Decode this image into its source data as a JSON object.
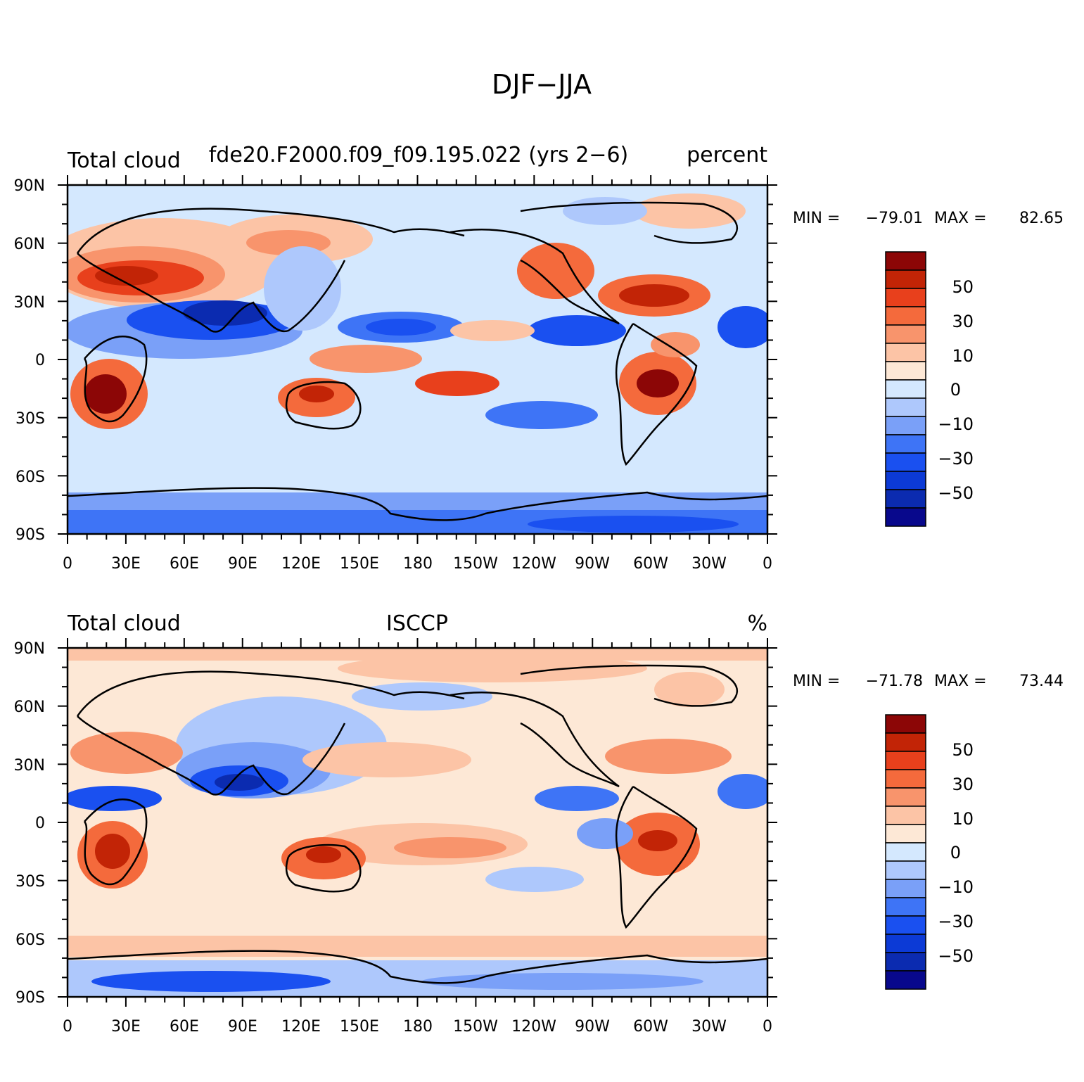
{
  "main_title": "DJF−JJA",
  "colorbar_colors": [
    "#08088c",
    "#0b2bb0",
    "#0c3ad6",
    "#1a50f0",
    "#3e74f6",
    "#7aa0f8",
    "#aec8fc",
    "#d4e8fe",
    "#fde8d6",
    "#fcc4a6",
    "#f8946c",
    "#f46a3c",
    "#e8401c",
    "#c22406",
    "#8c0606"
  ],
  "panels": [
    {
      "left_title": "Total cloud",
      "center_title": "fde20.F2000.f09_f09.195.022 (yrs 2−6)",
      "right_title": "percent",
      "min_label": "MIN =",
      "min_value": "−79.01",
      "max_label": "MAX =",
      "max_value": "82.65",
      "colorbar_labels": [
        "50",
        "30",
        "10",
        "0",
        "−10",
        "−30",
        "−50"
      ],
      "lat_labels": [
        "90N",
        "60N",
        "30N",
        "0",
        "30S",
        "60S",
        "90S"
      ],
      "lon_labels": [
        "0",
        "30E",
        "60E",
        "90E",
        "120E",
        "150E",
        "180",
        "150W",
        "120W",
        "90W",
        "60W",
        "30W",
        "0"
      ]
    },
    {
      "left_title": "Total cloud",
      "center_title": "ISCCP",
      "right_title": "%",
      "min_label": "MIN =",
      "min_value": "−71.78",
      "max_label": "MAX =",
      "max_value": "73.44",
      "colorbar_labels": [
        "50",
        "30",
        "10",
        "0",
        "−10",
        "−30",
        "−50"
      ],
      "lat_labels": [
        "90N",
        "60N",
        "30N",
        "0",
        "30S",
        "60S",
        "90S"
      ],
      "lon_labels": [
        "0",
        "30E",
        "60E",
        "90E",
        "120E",
        "150E",
        "180",
        "150W",
        "120W",
        "90W",
        "60W",
        "30W",
        "0"
      ]
    }
  ]
}
